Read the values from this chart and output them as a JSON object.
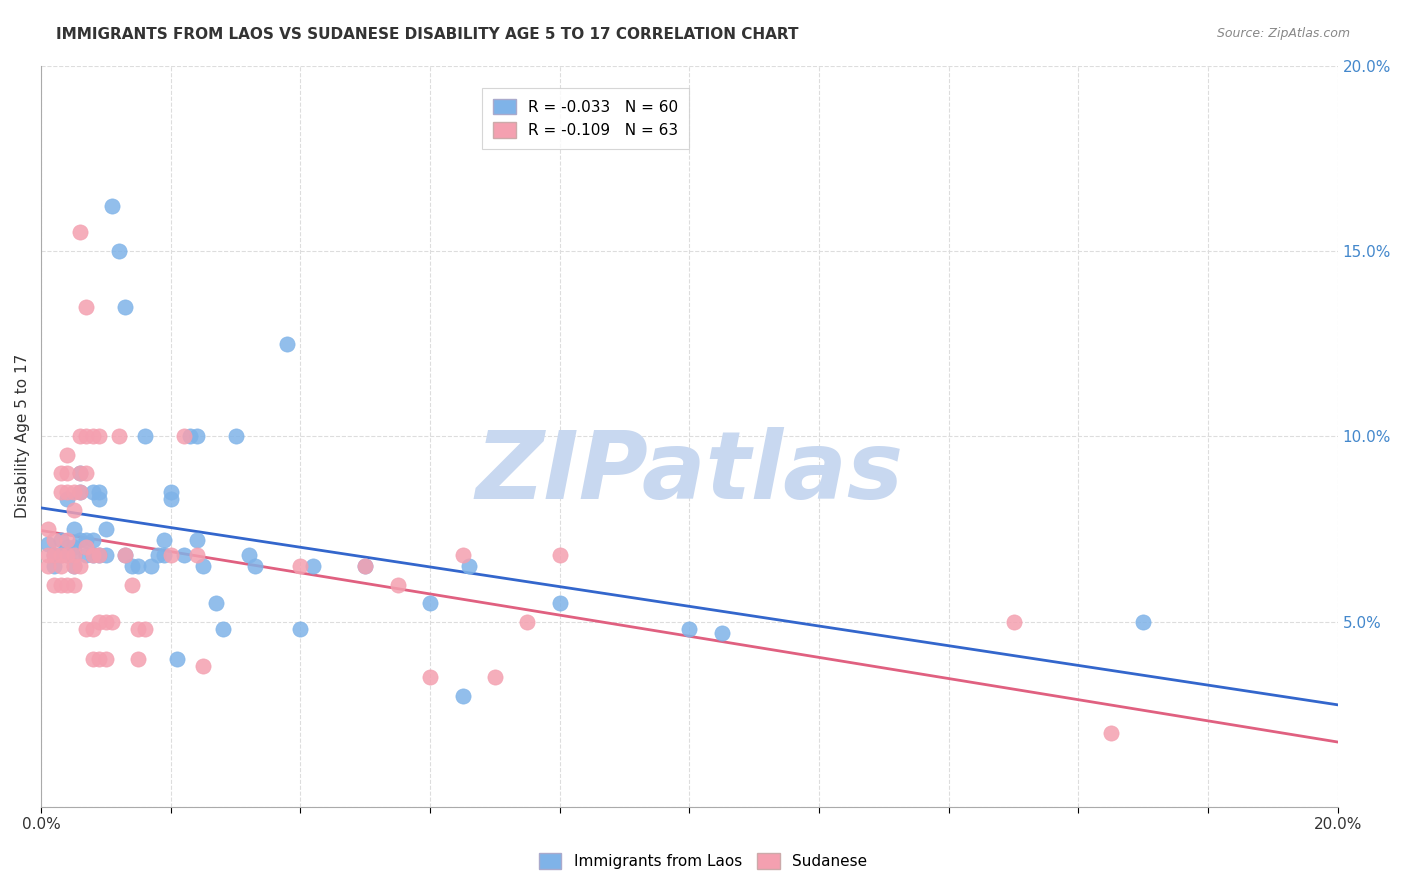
{
  "title": "IMMIGRANTS FROM LAOS VS SUDANESE DISABILITY AGE 5 TO 17 CORRELATION CHART",
  "source": "Source: ZipAtlas.com",
  "xlabel": "",
  "ylabel": "Disability Age 5 to 17",
  "xlim": [
    0,
    0.2
  ],
  "ylim": [
    0,
    0.2
  ],
  "xticks": [
    0.0,
    0.02,
    0.04,
    0.06,
    0.08,
    0.1,
    0.12,
    0.14,
    0.16,
    0.18,
    0.2
  ],
  "yticks": [
    0.0,
    0.05,
    0.1,
    0.15,
    0.2
  ],
  "ytick_labels": [
    "",
    "5.0%",
    "10.0%",
    "15.0%",
    "20.0%"
  ],
  "xtick_labels": [
    "0.0%",
    "",
    "",
    "",
    "",
    "",
    "",
    "",
    "",
    "",
    "20.0%"
  ],
  "blue_R": -0.033,
  "blue_N": 60,
  "pink_R": -0.109,
  "pink_N": 63,
  "blue_color": "#7FB3E8",
  "pink_color": "#F4A0B0",
  "blue_line_color": "#3366CC",
  "pink_line_color": "#E06080",
  "watermark": "ZIPatlas",
  "watermark_color": "#C8D8F0",
  "blue_scatter": [
    [
      0.001,
      0.071
    ],
    [
      0.002,
      0.068
    ],
    [
      0.002,
      0.065
    ],
    [
      0.003,
      0.072
    ],
    [
      0.003,
      0.068
    ],
    [
      0.004,
      0.07
    ],
    [
      0.004,
      0.083
    ],
    [
      0.004,
      0.068
    ],
    [
      0.005,
      0.07
    ],
    [
      0.005,
      0.075
    ],
    [
      0.005,
      0.068
    ],
    [
      0.005,
      0.065
    ],
    [
      0.006,
      0.09
    ],
    [
      0.006,
      0.085
    ],
    [
      0.006,
      0.072
    ],
    [
      0.007,
      0.068
    ],
    [
      0.007,
      0.072
    ],
    [
      0.008,
      0.068
    ],
    [
      0.008,
      0.072
    ],
    [
      0.008,
      0.085
    ],
    [
      0.009,
      0.083
    ],
    [
      0.009,
      0.085
    ],
    [
      0.009,
      0.068
    ],
    [
      0.01,
      0.075
    ],
    [
      0.01,
      0.068
    ],
    [
      0.011,
      0.162
    ],
    [
      0.012,
      0.15
    ],
    [
      0.013,
      0.135
    ],
    [
      0.013,
      0.068
    ],
    [
      0.014,
      0.065
    ],
    [
      0.015,
      0.065
    ],
    [
      0.016,
      0.1
    ],
    [
      0.017,
      0.065
    ],
    [
      0.018,
      0.068
    ],
    [
      0.019,
      0.068
    ],
    [
      0.019,
      0.072
    ],
    [
      0.02,
      0.083
    ],
    [
      0.02,
      0.085
    ],
    [
      0.021,
      0.04
    ],
    [
      0.022,
      0.068
    ],
    [
      0.023,
      0.1
    ],
    [
      0.024,
      0.1
    ],
    [
      0.024,
      0.072
    ],
    [
      0.025,
      0.065
    ],
    [
      0.027,
      0.055
    ],
    [
      0.028,
      0.048
    ],
    [
      0.03,
      0.1
    ],
    [
      0.032,
      0.068
    ],
    [
      0.033,
      0.065
    ],
    [
      0.038,
      0.125
    ],
    [
      0.04,
      0.048
    ],
    [
      0.042,
      0.065
    ],
    [
      0.05,
      0.065
    ],
    [
      0.06,
      0.055
    ],
    [
      0.065,
      0.03
    ],
    [
      0.066,
      0.065
    ],
    [
      0.08,
      0.055
    ],
    [
      0.1,
      0.048
    ],
    [
      0.105,
      0.047
    ],
    [
      0.17,
      0.05
    ]
  ],
  "pink_scatter": [
    [
      0.001,
      0.068
    ],
    [
      0.001,
      0.065
    ],
    [
      0.001,
      0.075
    ],
    [
      0.002,
      0.072
    ],
    [
      0.002,
      0.068
    ],
    [
      0.002,
      0.06
    ],
    [
      0.003,
      0.09
    ],
    [
      0.003,
      0.085
    ],
    [
      0.003,
      0.068
    ],
    [
      0.003,
      0.065
    ],
    [
      0.003,
      0.06
    ],
    [
      0.004,
      0.095
    ],
    [
      0.004,
      0.09
    ],
    [
      0.004,
      0.085
    ],
    [
      0.004,
      0.072
    ],
    [
      0.004,
      0.068
    ],
    [
      0.004,
      0.06
    ],
    [
      0.005,
      0.085
    ],
    [
      0.005,
      0.08
    ],
    [
      0.005,
      0.068
    ],
    [
      0.005,
      0.065
    ],
    [
      0.005,
      0.06
    ],
    [
      0.006,
      0.155
    ],
    [
      0.006,
      0.1
    ],
    [
      0.006,
      0.09
    ],
    [
      0.006,
      0.085
    ],
    [
      0.006,
      0.065
    ],
    [
      0.007,
      0.135
    ],
    [
      0.007,
      0.1
    ],
    [
      0.007,
      0.09
    ],
    [
      0.007,
      0.07
    ],
    [
      0.007,
      0.048
    ],
    [
      0.008,
      0.1
    ],
    [
      0.008,
      0.068
    ],
    [
      0.008,
      0.048
    ],
    [
      0.008,
      0.04
    ],
    [
      0.009,
      0.1
    ],
    [
      0.009,
      0.068
    ],
    [
      0.009,
      0.05
    ],
    [
      0.009,
      0.04
    ],
    [
      0.01,
      0.05
    ],
    [
      0.01,
      0.04
    ],
    [
      0.011,
      0.05
    ],
    [
      0.012,
      0.1
    ],
    [
      0.013,
      0.068
    ],
    [
      0.014,
      0.06
    ],
    [
      0.015,
      0.048
    ],
    [
      0.015,
      0.04
    ],
    [
      0.016,
      0.048
    ],
    [
      0.02,
      0.068
    ],
    [
      0.022,
      0.1
    ],
    [
      0.024,
      0.068
    ],
    [
      0.025,
      0.038
    ],
    [
      0.04,
      0.065
    ],
    [
      0.05,
      0.065
    ],
    [
      0.055,
      0.06
    ],
    [
      0.06,
      0.035
    ],
    [
      0.065,
      0.068
    ],
    [
      0.07,
      0.035
    ],
    [
      0.075,
      0.05
    ],
    [
      0.08,
      0.068
    ],
    [
      0.15,
      0.05
    ],
    [
      0.165,
      0.02
    ]
  ]
}
